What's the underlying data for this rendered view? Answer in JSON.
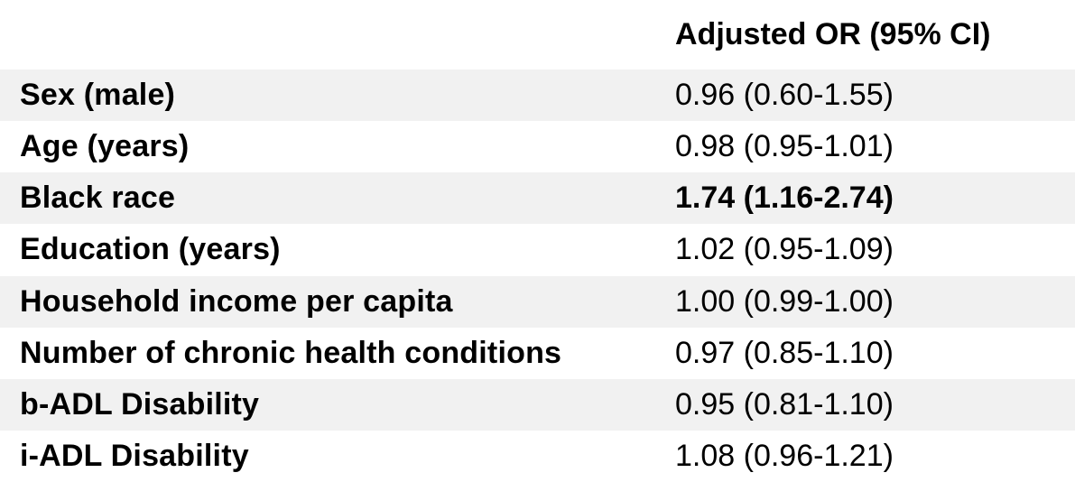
{
  "table": {
    "header": {
      "label_col": "",
      "value_col": "Adjusted OR (95% CI)"
    },
    "rows": [
      {
        "label": "Sex (male)",
        "value": "0.96 (0.60-1.55)",
        "value_bold": false
      },
      {
        "label": "Age (years)",
        "value": "0.98 (0.95-1.01)",
        "value_bold": false
      },
      {
        "label": "Black race",
        "value": "1.74 (1.16-2.74)",
        "value_bold": true
      },
      {
        "label": "Education (years)",
        "value": "1.02 (0.95-1.09)",
        "value_bold": false
      },
      {
        "label": "Household income per capita",
        "value": "1.00 (0.99-1.00)",
        "value_bold": false
      },
      {
        "label": "Number of chronic health conditions",
        "value": "0.97 (0.85-1.10)",
        "value_bold": false
      },
      {
        "label": "b-ADL Disability",
        "value": "0.95 (0.81-1.10)",
        "value_bold": false
      },
      {
        "label": "i-ADL Disability",
        "value": "1.08 (0.96-1.21)",
        "value_bold": false
      }
    ],
    "colors": {
      "stripe": "#f1f1f1",
      "text": "#000000",
      "background": "#ffffff"
    }
  }
}
